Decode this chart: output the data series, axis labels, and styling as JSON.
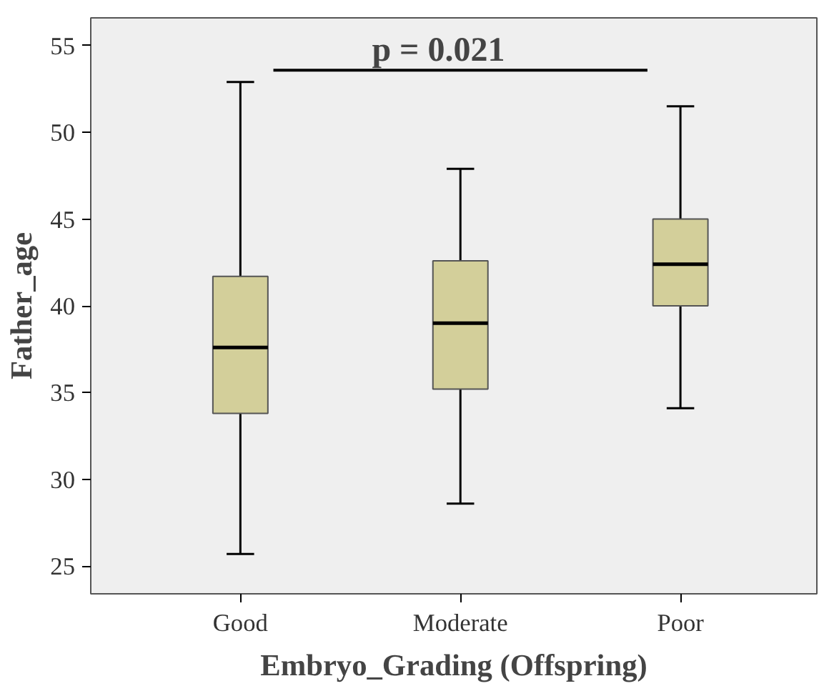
{
  "chart_data": {
    "type": "box",
    "xlabel": "Embryo_Grading (Offspring)",
    "ylabel": "Father_age",
    "categories": [
      "Good",
      "Moderate",
      "Poor"
    ],
    "boxes": [
      {
        "low": 25.7,
        "q1": 33.8,
        "median": 37.6,
        "q3": 41.7,
        "high": 52.9
      },
      {
        "low": 28.6,
        "q1": 35.2,
        "median": 39.0,
        "q3": 42.6,
        "high": 47.9
      },
      {
        "low": 34.1,
        "q1": 40.0,
        "median": 42.4,
        "q3": 45.0,
        "high": 51.5
      }
    ],
    "color": "#d3cf9a",
    "ylim": [
      23.4,
      56.6
    ],
    "yticks": [
      25,
      30,
      35,
      40,
      45,
      50,
      55
    ],
    "grid": false,
    "annotations": [
      "p = 0.021"
    ]
  }
}
